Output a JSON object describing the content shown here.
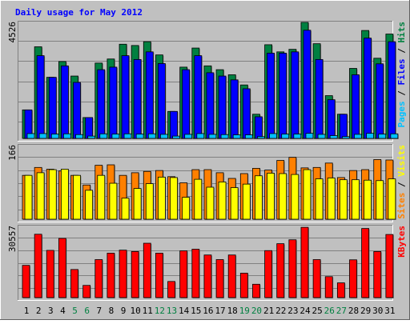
{
  "chart_data": {
    "type": "bar",
    "title": "Daily usage for May 2012",
    "categories": [
      "1",
      "2",
      "3",
      "4",
      "5",
      "6",
      "7",
      "8",
      "9",
      "10",
      "11",
      "12",
      "13",
      "14",
      "15",
      "16",
      "17",
      "18",
      "19",
      "20",
      "21",
      "22",
      "23",
      "24",
      "25",
      "26",
      "27",
      "28",
      "29",
      "30",
      "31"
    ],
    "weekend_days": [
      "5",
      "6",
      "12",
      "13",
      "19",
      "20",
      "26",
      "27"
    ],
    "panels": [
      {
        "id": "hits-files-pages",
        "ymax": 4526,
        "ymax_label": "4526",
        "label_parts": [
          {
            "text": "Pages",
            "color": "#00c0ff"
          },
          {
            "text": " / ",
            "color": "#000000"
          },
          {
            "text": "Files",
            "color": "#0000ff"
          },
          {
            "text": " / ",
            "color": "#000000"
          },
          {
            "text": "Hits",
            "color": "#008040"
          }
        ],
        "series": [
          {
            "name": "Hits",
            "color": "#008040",
            "values": [
              1120,
              3600,
              2400,
              3020,
              2450,
              820,
              2960,
              3120,
              3700,
              3650,
              3800,
              3280,
              1060,
              2800,
              3550,
              2850,
              2700,
              2500,
              2100,
              950,
              3680,
              3400,
              3500,
              4560,
              3720,
              1680,
              950,
              2750,
              4240,
              3150,
              4100
            ]
          },
          {
            "name": "Files",
            "color": "#0000ff",
            "values": [
              1120,
              3250,
              2400,
              2850,
              2200,
              820,
              2700,
              2800,
              3250,
              3100,
              3400,
              2940,
              1060,
              2700,
              3250,
              2580,
              2450,
              2300,
              1950,
              850,
              3350,
              3350,
              3400,
              4250,
              3100,
              1520,
              950,
              2500,
              3940,
              2930,
              3800
            ]
          },
          {
            "name": "Pages",
            "color": "#00c0ff",
            "values": [
              190,
              190,
              170,
              180,
              150,
              90,
              180,
              170,
              180,
              170,
              180,
              160,
              90,
              160,
              190,
              160,
              150,
              140,
              140,
              70,
              190,
              170,
              170,
              200,
              160,
              110,
              70,
              160,
              200,
              170,
              180
            ]
          }
        ]
      },
      {
        "id": "visits-sites",
        "ymax": 166,
        "ymax_label": "166",
        "label_parts": [
          {
            "text": "Sites",
            "color": "#ff8000"
          },
          {
            "text": " / ",
            "color": "#000000"
          },
          {
            "text": "Visits",
            "color": "#ffff00"
          }
        ],
        "series": [
          {
            "name": "Visits",
            "color": "#ff8000",
            "values": [
              100,
              118,
              114,
              110,
              100,
              78,
              123,
              124,
              100,
              106,
              109,
              111,
              97,
              83,
              113,
              113,
              106,
              93,
              104,
              116,
              112,
              134,
              141,
              117,
              118,
              128,
              95,
              111,
              113,
              136,
              135
            ]
          },
          {
            "name": "Sites",
            "color": "#ffff00",
            "values": [
              100,
              106,
              113,
              114,
              100,
              66,
              100,
              82,
              48,
              70,
              81,
              96,
              95,
              50,
              91,
              73,
              85,
              72,
              80,
              99,
              105,
              104,
              102,
              113,
              92,
              94,
              90,
              90,
              89,
              88,
              92
            ]
          }
        ]
      },
      {
        "id": "kbytes",
        "ymax": 30557,
        "ymax_label": "30557",
        "label_parts": [
          {
            "text": "KBytes",
            "color": "#ff0000"
          }
        ],
        "series": [
          {
            "name": "KBytes",
            "color": "#ff0000",
            "values": [
              14000,
              27500,
              20500,
              25700,
              12200,
              5300,
              16500,
              19300,
              20600,
              20000,
              23600,
              19300,
              7000,
              20300,
              21000,
              18500,
              16500,
              18500,
              10600,
              5800,
              20400,
              23400,
              25100,
              30500,
              16500,
              9100,
              6400,
              16400,
              30000,
              20000,
              27400
            ]
          }
        ]
      }
    ]
  }
}
